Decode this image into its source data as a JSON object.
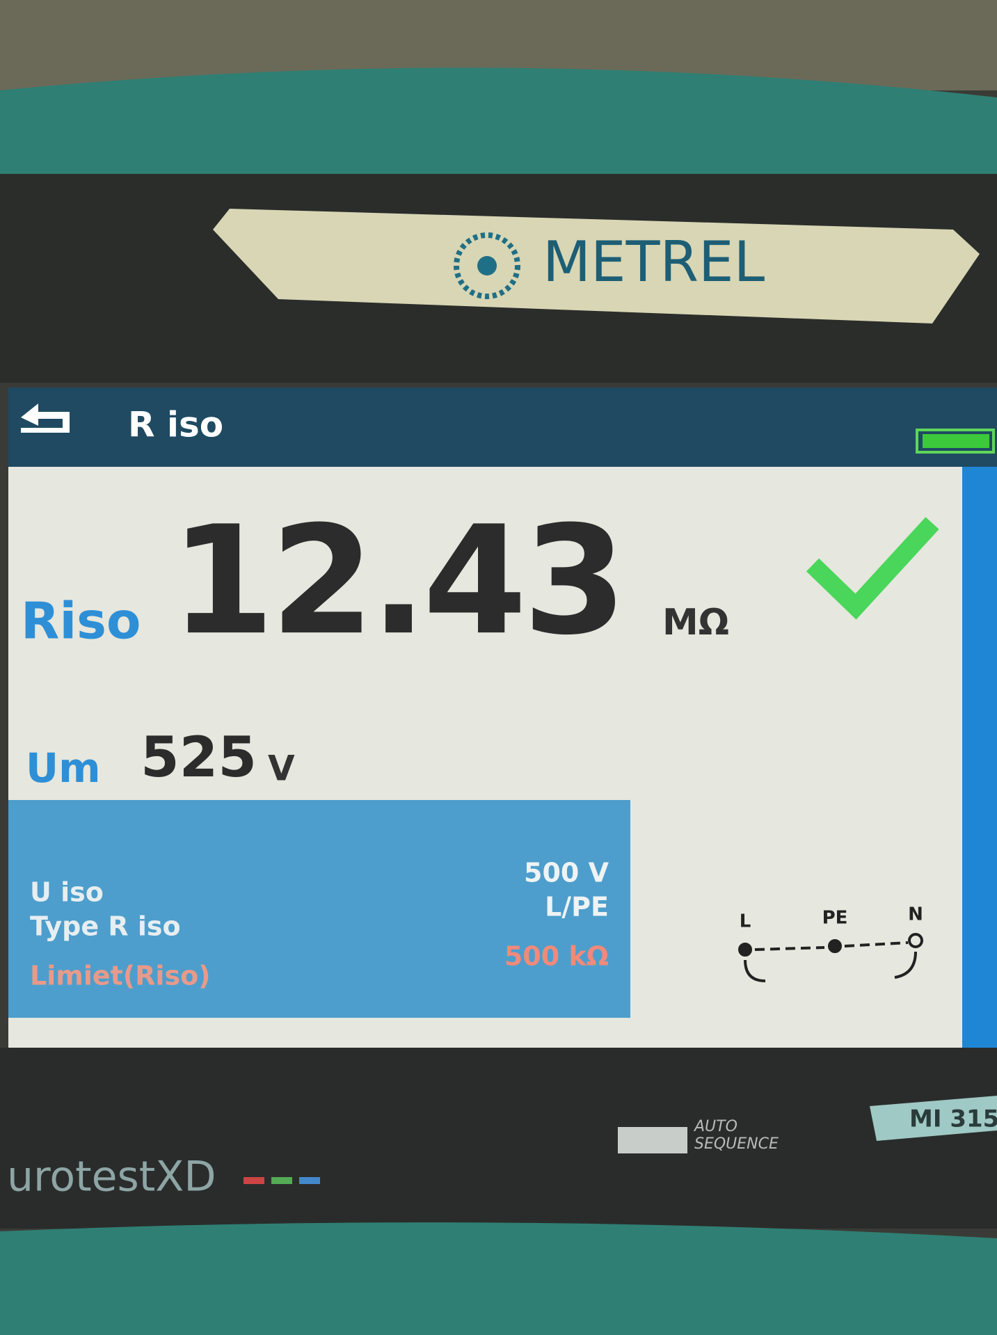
{
  "device": {
    "brand": "METREL",
    "product": "urotestXD",
    "model": "MI 315",
    "auto_sequence": {
      "line1": "AUTO",
      "line2": "SEQUENCE"
    }
  },
  "screen": {
    "title": "R iso",
    "result": {
      "label": "Riso",
      "value": "12.43",
      "unit": "MΩ"
    },
    "measured": {
      "label": "Um",
      "value": "525",
      "unit": "V"
    },
    "params": [
      {
        "label": "U iso",
        "value": "500 V"
      },
      {
        "label": "Type R iso",
        "value": "L/PE"
      },
      {
        "label": "Limiet(Riso)",
        "value": "500 kΩ"
      }
    ],
    "terminals": [
      "L",
      "PE",
      "N"
    ]
  }
}
